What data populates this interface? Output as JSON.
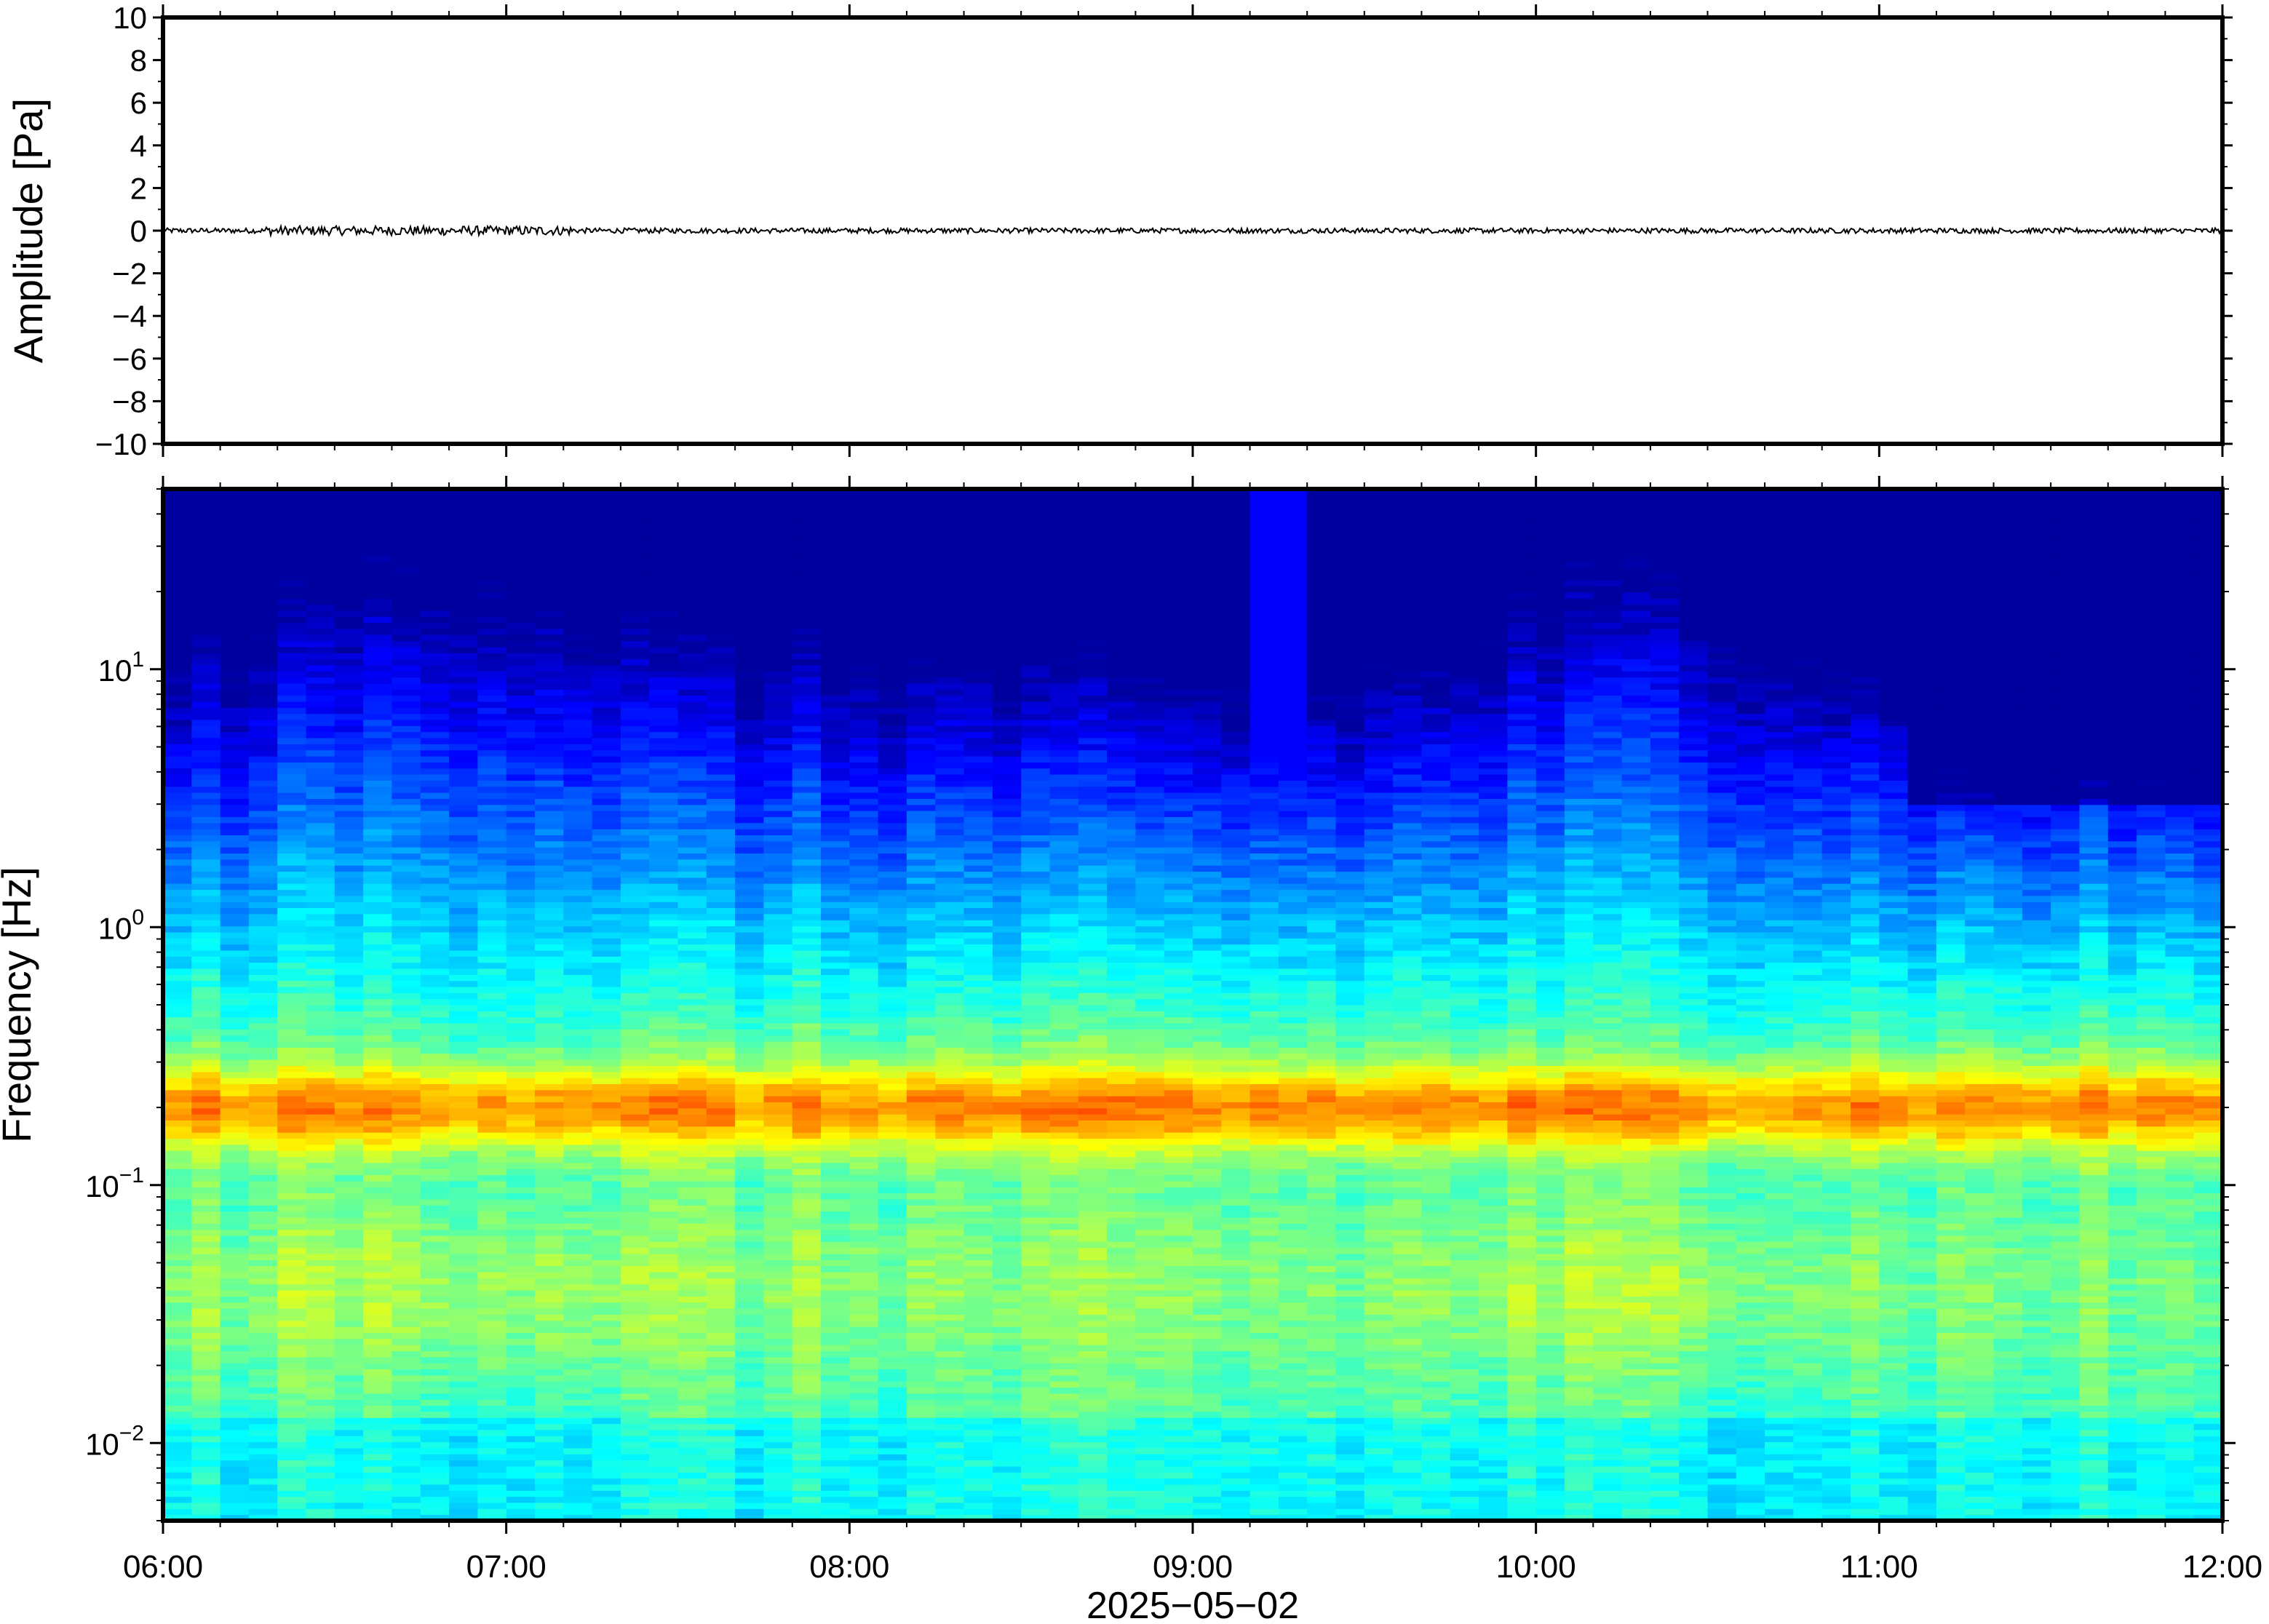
{
  "chart_data": [
    {
      "type": "line",
      "title": "",
      "xlabel": "",
      "ylabel": "Amplitude [Pa]",
      "ylim": [
        -10,
        10
      ],
      "yticks": [
        "10",
        "8",
        "6",
        "4",
        "2",
        "0",
        "−2",
        "−4",
        "−6",
        "−8",
        "−10"
      ],
      "ytick_values": [
        10,
        8,
        6,
        4,
        2,
        0,
        -2,
        -4,
        -6,
        -8,
        -10
      ],
      "xlim": [
        "06:00",
        "12:00"
      ],
      "series": [
        {
          "values": "near-zero pressure trace, |amplitude| < 0.3 Pa throughout",
          "color": "#000000"
        }
      ],
      "grid": false
    },
    {
      "type": "heatmap",
      "title": "",
      "ylabel": "Frequency [Hz]",
      "xlabel": "2025−05−02",
      "xticks": [
        "06:00",
        "07:00",
        "08:00",
        "09:00",
        "10:00",
        "11:00",
        "12:00"
      ],
      "xtick_hours": [
        6,
        7,
        8,
        9,
        10,
        11,
        12
      ],
      "yscale": "log",
      "ylim": [
        0.005,
        50
      ],
      "yticks": [
        {
          "base": "10",
          "exp": "1",
          "value": 10
        },
        {
          "base": "10",
          "exp": "0",
          "value": 1
        },
        {
          "base": "10",
          "exp": "−1",
          "value": 0.1
        },
        {
          "base": "10",
          "exp": "−2",
          "value": 0.01
        }
      ],
      "xlim": [
        "06:00",
        "12:00"
      ],
      "colormap": "jet",
      "features": {
        "microbarom_band_hz": [
          0.15,
          0.3
        ],
        "microbarom_peak_hz": 0.2,
        "high_freq_burst": {
          "start": "09:08",
          "end": "09:22",
          "fmax_hz": 40
        }
      },
      "grid": false
    }
  ]
}
